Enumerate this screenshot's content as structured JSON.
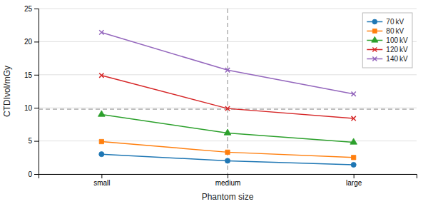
{
  "chart_data": {
    "type": "line",
    "xlabel": "Phantom size",
    "ylabel": "CTDIvol/mGy",
    "categories": [
      "small",
      "medium",
      "large"
    ],
    "series": [
      {
        "name": "70 kV",
        "values": [
          3.0,
          2.0,
          1.4
        ],
        "marker": "circle"
      },
      {
        "name": "80 kV",
        "values": [
          4.9,
          3.3,
          2.5
        ],
        "marker": "square"
      },
      {
        "name": "100 kV",
        "values": [
          9.0,
          6.2,
          4.8
        ],
        "marker": "triangle"
      },
      {
        "name": "120 kV",
        "values": [
          14.9,
          9.9,
          8.4
        ],
        "marker": "x"
      },
      {
        "name": "140 kV",
        "values": [
          21.4,
          15.7,
          12.1
        ],
        "marker": "x"
      }
    ],
    "hline": 9.8,
    "vline": "medium",
    "ylim": [
      0,
      25
    ],
    "yticks": [
      0,
      5,
      10,
      15,
      20,
      25
    ],
    "grid": true,
    "legend": "upper right"
  }
}
